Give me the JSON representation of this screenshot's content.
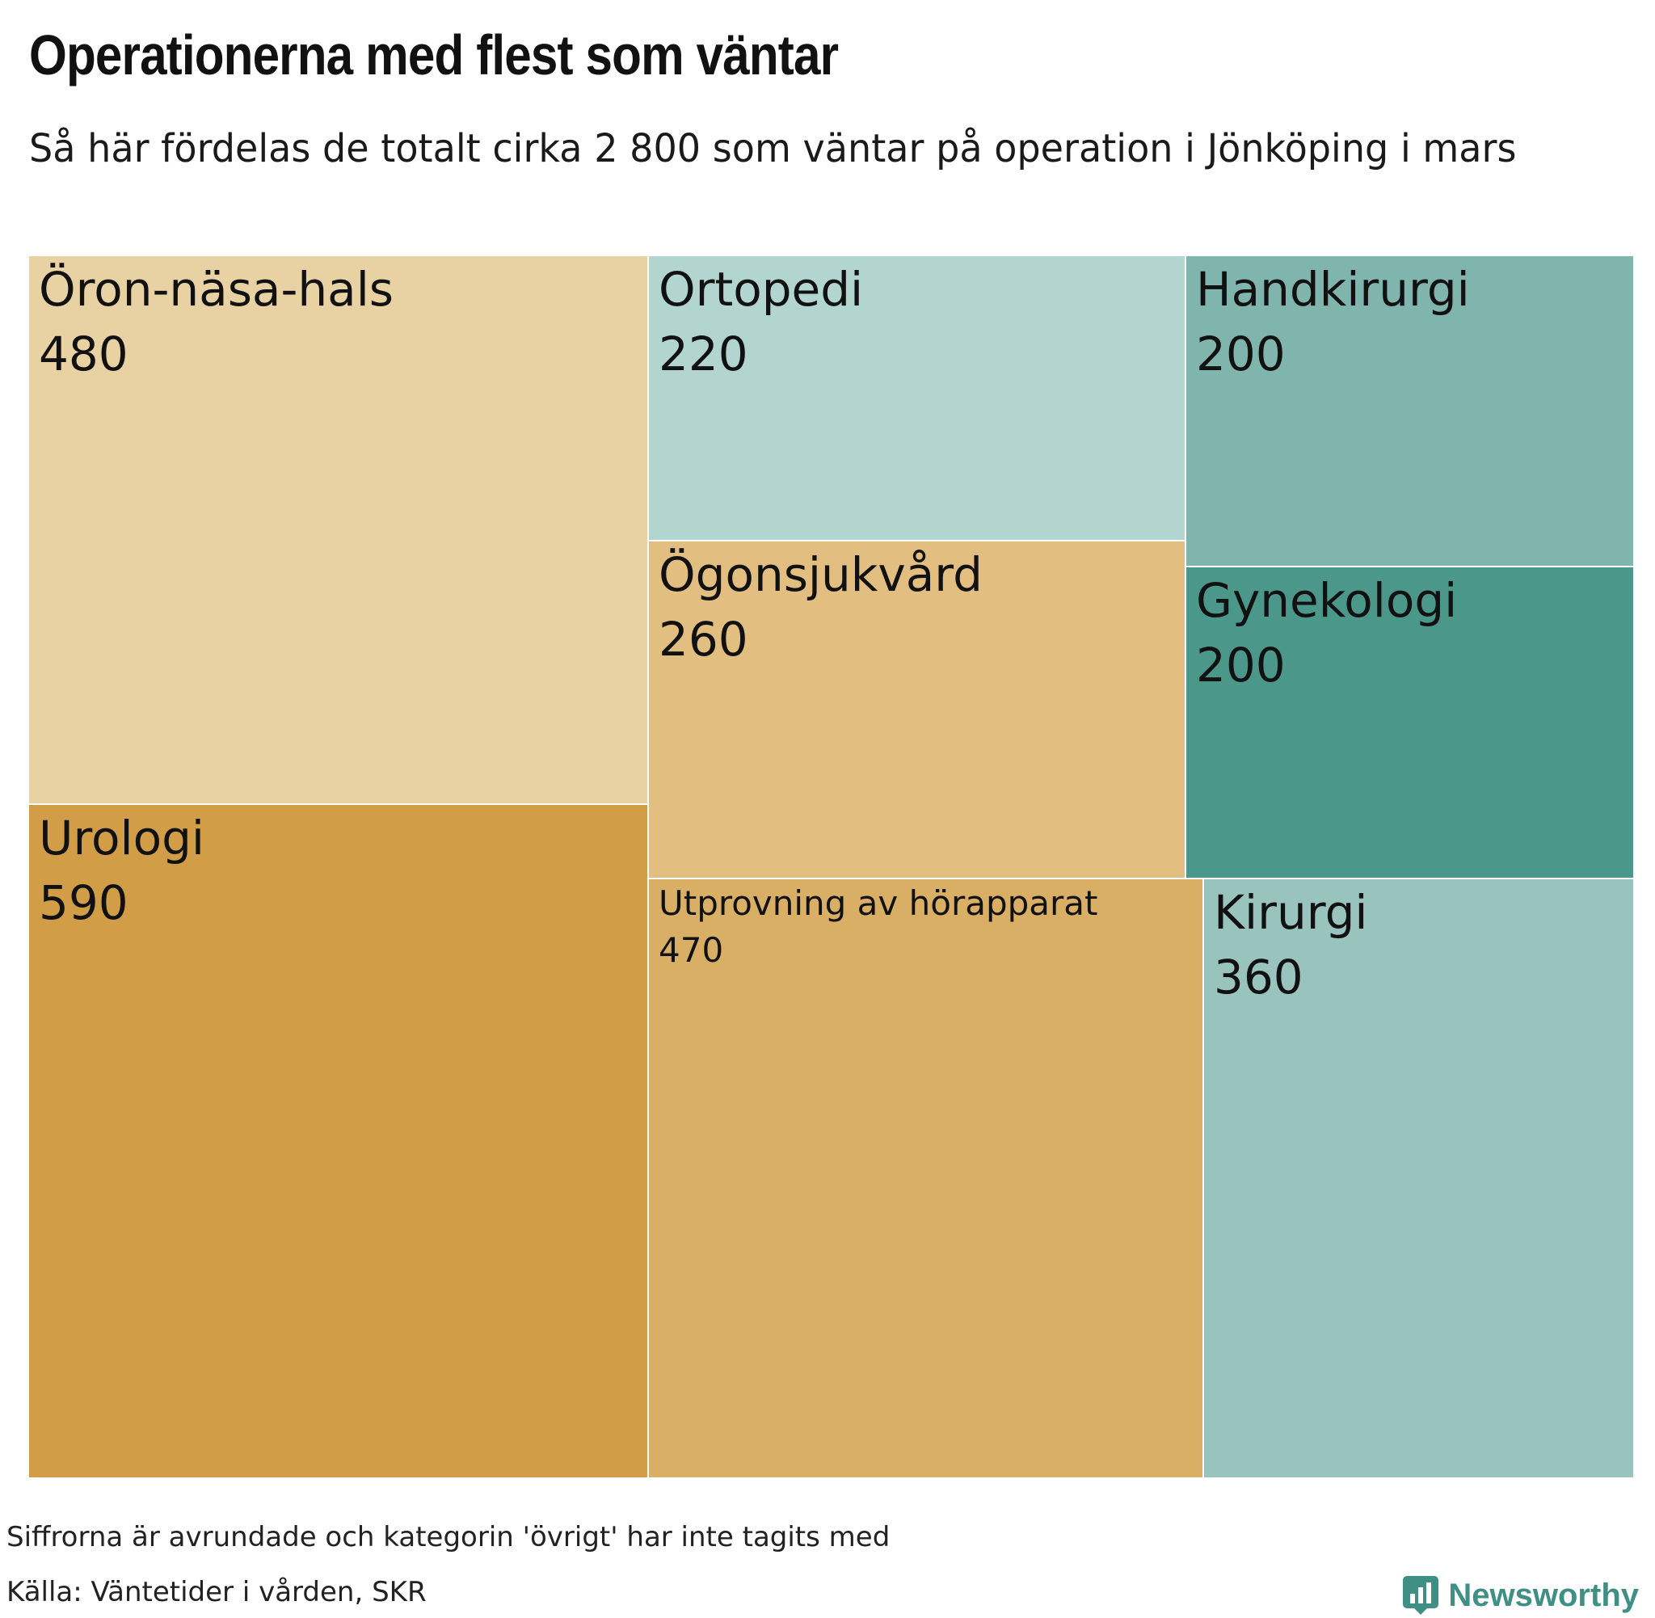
{
  "header": {
    "title": "Operationerna med flest som väntar",
    "subtitle": "Så här fördelas de totalt cirka 2 800 som väntar på operation i Jönköping i mars"
  },
  "chart_data": {
    "type": "treemap",
    "title": "Operationerna med flest som väntar",
    "subtitle": "Så här fördelas de totalt cirka 2 800 som väntar på operation i Jönköping i mars",
    "items": [
      {
        "name": "Öron-näsa-hals",
        "value": 480,
        "color": "#e8d1a2"
      },
      {
        "name": "Urologi",
        "value": 590,
        "color": "#d19e47"
      },
      {
        "name": "Ortopedi",
        "value": 220,
        "color": "#b2d6cf"
      },
      {
        "name": "Ögonsjukvård",
        "value": 260,
        "color": "#e2be81"
      },
      {
        "name": "Handkirurgi",
        "value": 200,
        "color": "#7fb5ac"
      },
      {
        "name": "Gynekologi",
        "value": 200,
        "color": "#4b978a"
      },
      {
        "name": "Utprovning av hörapparat",
        "value": 470,
        "color": "#d9af65"
      },
      {
        "name": "Kirurgi",
        "value": 360,
        "color": "#98c4bd"
      }
    ]
  },
  "footer": {
    "note": "Siffrorna är avrundade och kategorin 'övrigt' har inte tagits med",
    "source": "Källa: Väntetider i vården, SKR",
    "brand": "Newsworthy",
    "brand_color": "#3f8f85",
    "brand_icon": "bar-chart-icon"
  }
}
